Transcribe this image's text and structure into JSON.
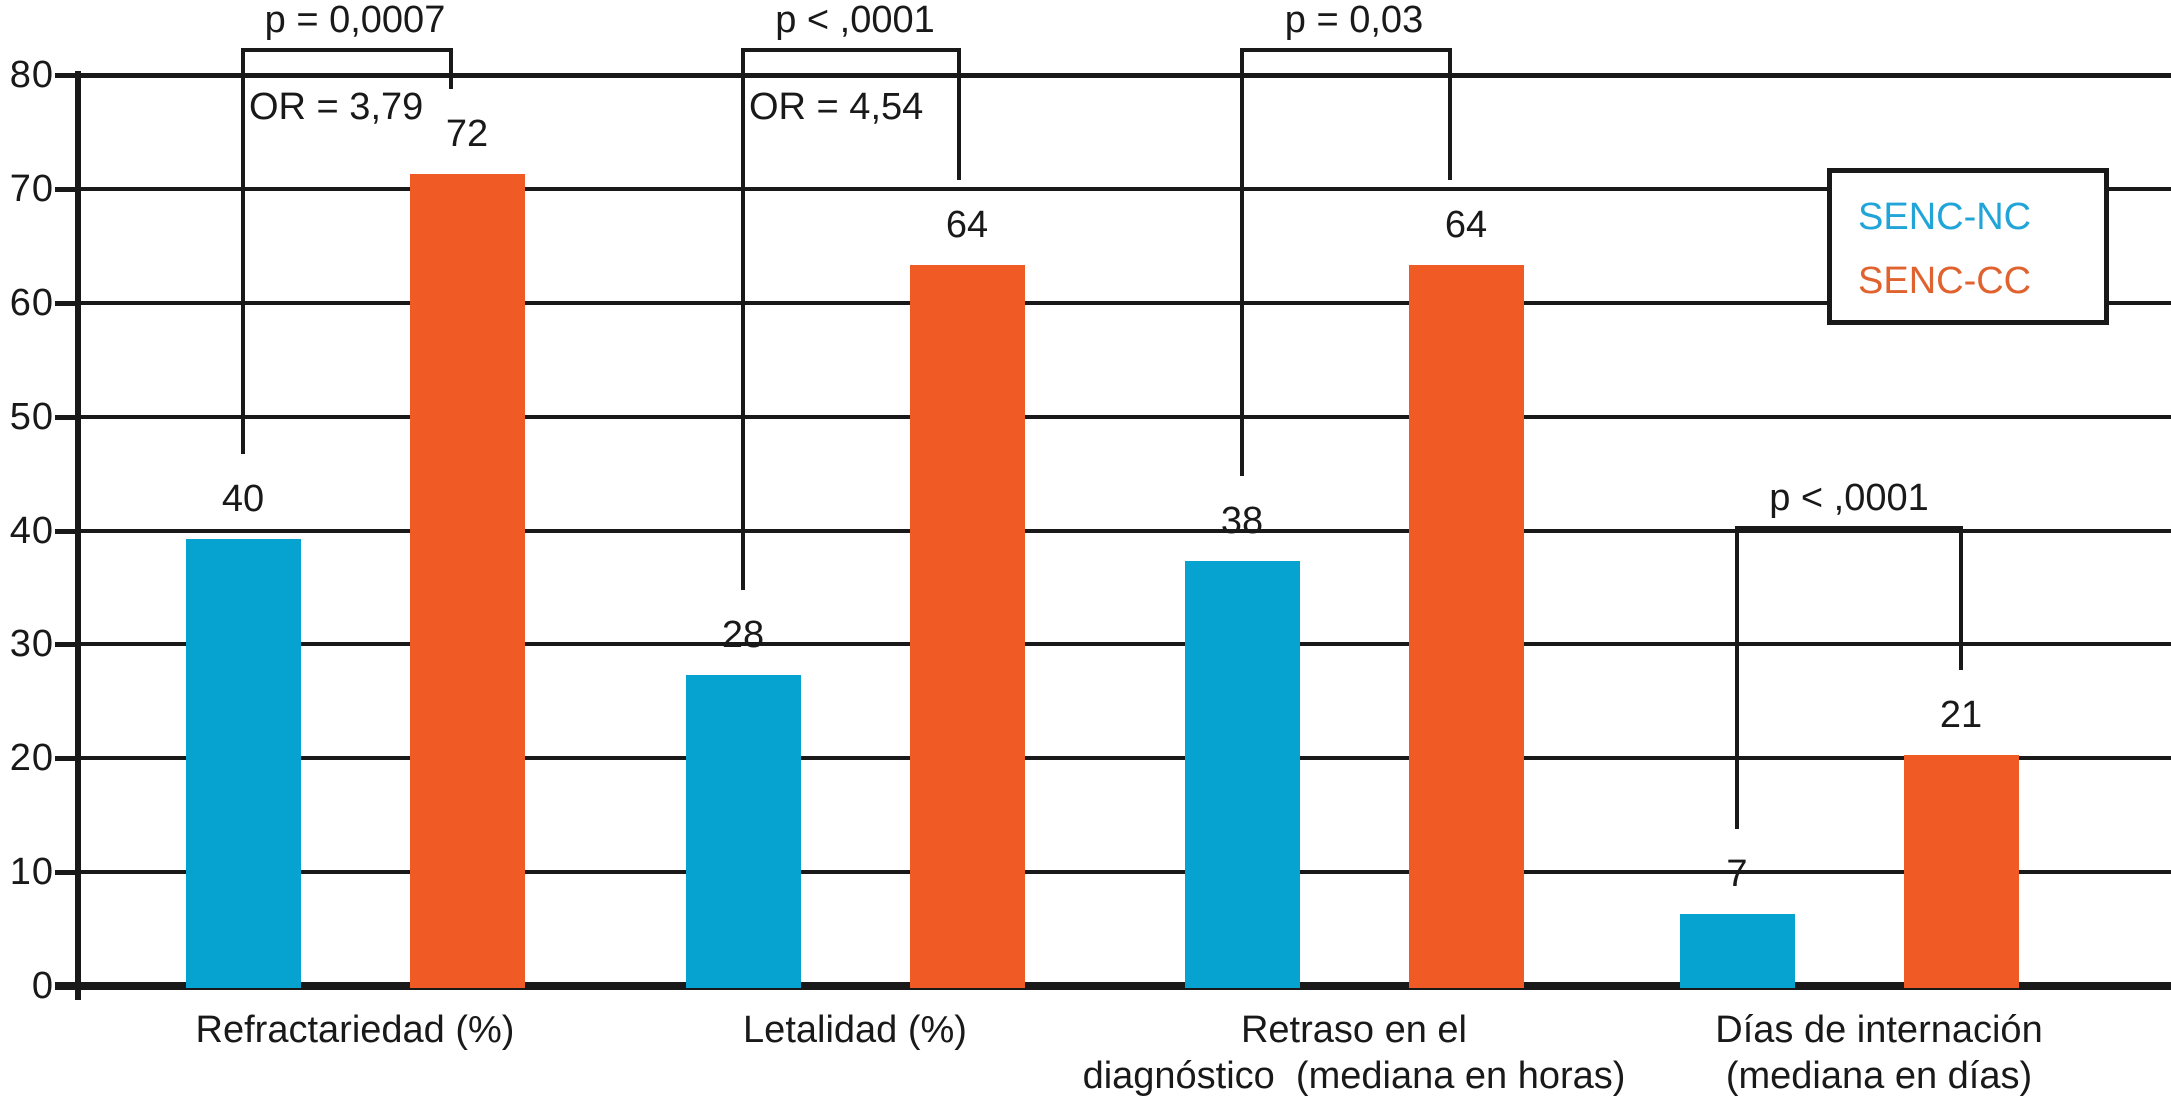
{
  "chart_data": {
    "type": "bar",
    "title": "",
    "xlabel": "",
    "ylabel": "",
    "ylim": [
      0,
      80
    ],
    "yticks": [
      0,
      10,
      20,
      30,
      40,
      50,
      60,
      70,
      80
    ],
    "grid": "horizontal",
    "legend_position": "right-inside",
    "categories": [
      "Refractariedad (%)",
      "Letalidad (%)",
      "Retraso en el diagnóstico (mediana en horas)",
      "Días de internación (mediana en días)"
    ],
    "category_lines": [
      [
        "Refractariedad (%)"
      ],
      [
        "Letalidad (%)"
      ],
      [
        "Retraso en el",
        "diagnóstico  (mediana en horas)"
      ],
      [
        "Días de internación",
        "(mediana en días)"
      ]
    ],
    "series": [
      {
        "name": "SENC-NC",
        "color": "#06A2D0",
        "values": [
          40,
          28,
          38,
          7
        ]
      },
      {
        "name": "SENC-CC",
        "color": "#F05A24",
        "values": [
          72,
          64,
          64,
          21
        ]
      }
    ],
    "annotations": [
      {
        "pair": 1,
        "p_label": "p = 0,0007",
        "or_label": "OR = 3,79"
      },
      {
        "pair": 2,
        "p_label": "p < ,0001",
        "or_label": "OR = 4,54"
      },
      {
        "pair": 3,
        "p_label": "p = 0,03",
        "or_label": ""
      },
      {
        "pair": 4,
        "p_label": "p < ,0001",
        "or_label": ""
      }
    ]
  },
  "legend": {
    "items": [
      {
        "label": "SENC-NC",
        "color": "#21A5D8"
      },
      {
        "label": "SENC-CC",
        "color": "#E0622F"
      }
    ]
  },
  "colors": {
    "line": "#191919",
    "background": "#ffffff",
    "bar_nc": "#06A2D0",
    "bar_cc": "#F05A24"
  }
}
